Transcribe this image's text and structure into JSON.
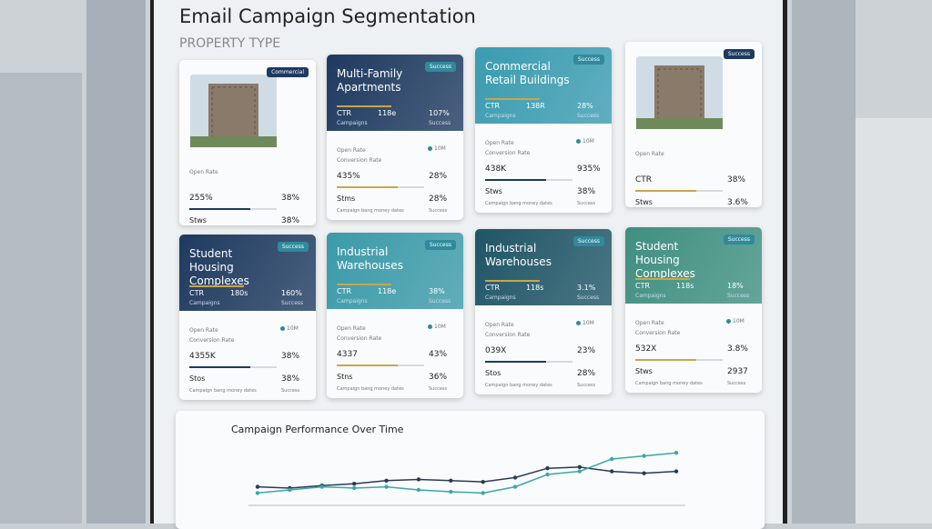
{
  "header": {
    "title": "Email Campaign Segmentation",
    "subtitle": "PROPERTY TYPE"
  },
  "cards": [
    {
      "badge": "Commercial",
      "open": "Open Rate",
      "v1": "255%",
      "r1": "38%",
      "v2": "Stws",
      "r2": "38%",
      "foot": "Campaign bang money dates",
      "foot_right": "Success"
    },
    {
      "title": "Multi-Family Apartments",
      "badge": "Success",
      "color": "#1e3a5f",
      "head": [
        "CTR",
        "118e",
        "107%"
      ],
      "head_sub": [
        "Campaigns",
        "Success"
      ],
      "open": "Open Rate",
      "dot": "10M",
      "conv": "Conversion Rate",
      "v1": "435%",
      "r1": "28%",
      "v2": "Stms",
      "r2": "28%",
      "foot": "Campaign bang money dates",
      "foot_right": "Success"
    },
    {
      "title": "Commercial Retail Buildings",
      "badge": "Success",
      "color": "#3a9bb0",
      "head": [
        "CTR",
        "138R",
        "28%"
      ],
      "head_sub": [
        "Campaigns",
        "Success"
      ],
      "open": "Open Rate",
      "dot": "10M",
      "conv": "Conversion Rate",
      "v1": "438K",
      "r1": "935%",
      "v2": "Stws",
      "r2": "38%",
      "foot": "Campaign bang money dates",
      "foot_right": "Success"
    },
    {
      "badge": "Success",
      "open": "Open Rate",
      "v1": "CTR",
      "r1": "38%",
      "v2": "Stws",
      "r2": "3.6%",
      "foot_right": "Success"
    },
    {
      "title": "Student Housing Complexes",
      "badge": "Success",
      "color": "#1e3a5f",
      "head": [
        "CTR",
        "180s",
        "160%"
      ],
      "head_sub": [
        "Campaigns",
        "Success"
      ],
      "open": "Open Rate",
      "dot": "10M",
      "conv": "Conversion Rate",
      "v1": "4355K",
      "r1": "38%",
      "v2": "Stos",
      "r2": "38%",
      "foot": "Campaign bang money dates",
      "foot_right": "Success"
    },
    {
      "title": "Industrial Warehouses",
      "badge": "Success",
      "color": "#3b9aa8",
      "head": [
        "CTR",
        "118e",
        "38%"
      ],
      "head_sub": [
        "Campaigns",
        "Success"
      ],
      "open": "Open Rate",
      "dot": "10M",
      "conv": "Conversion Rate",
      "v1": "4337",
      "r1": "43%",
      "v2": "Stns",
      "r2": "36%",
      "foot": "Campaign bang money dates",
      "foot_right": "Success"
    },
    {
      "title": "Industrial Warehouses",
      "badge": "Success",
      "color": "#1f5566",
      "head": [
        "CTR",
        "118s",
        "3.1%"
      ],
      "head_sub": [
        "Campaigns",
        "Success"
      ],
      "open": "Open Rate",
      "dot": "10M",
      "conv": "Conversion Rate",
      "v1": "039X",
      "r1": "23%",
      "v2": "Stos",
      "r2": "28%",
      "foot": "Campaign bang money dates",
      "foot_right": "Success"
    },
    {
      "title": "Student Housing Complexes",
      "badge": "Success",
      "color": "#3f8f80",
      "head": [
        "CTR",
        "118s",
        "18%"
      ],
      "head_sub": [
        "Campaigns",
        "Success"
      ],
      "open": "Open Rate",
      "dot": "10M",
      "conv": "Conversion Rate",
      "v1": "532X",
      "r1": "3.8%",
      "v2": "Stws",
      "r2": "2937",
      "foot": "Campaign bang money dates",
      "foot_right": "Success"
    }
  ],
  "chart": {
    "title": "Campaign Performance Over Time",
    "ylim": [
      0,
      100
    ],
    "series": [
      {
        "color": "#2a3a55",
        "values": [
          30,
          28,
          32,
          35,
          40,
          42,
          40,
          38,
          45,
          60,
          62,
          55,
          52,
          55
        ]
      },
      {
        "color": "#3aa8a8",
        "values": [
          20,
          25,
          30,
          28,
          30,
          25,
          22,
          20,
          30,
          50,
          55,
          75,
          80,
          85
        ]
      }
    ]
  }
}
